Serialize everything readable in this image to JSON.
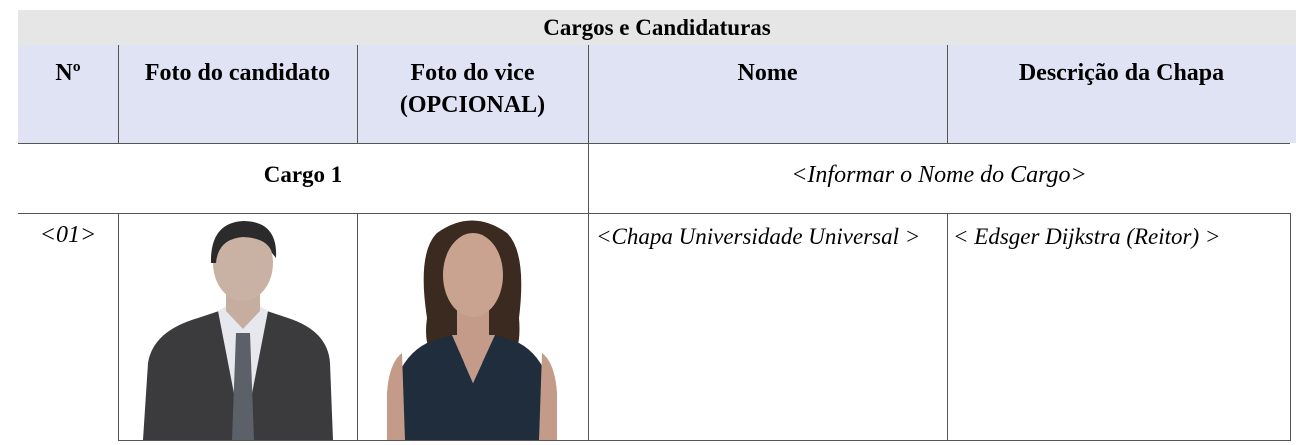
{
  "header": {
    "title": "Cargos e Candidaturas"
  },
  "table": {
    "headers": [
      "Nº",
      "Foto do candidato",
      "Foto do vice (OPCIONAL)",
      "Nome",
      "Descrição da Chapa"
    ],
    "cargo_row": {
      "label": "Cargo 1",
      "value": "<Informar o Nome do Cargo>"
    },
    "rows": [
      [
        "<01>",
        "<Chapa Universidade Universal >",
        "< Edsger Dijkstra (Reitor) >"
      ]
    ]
  }
}
